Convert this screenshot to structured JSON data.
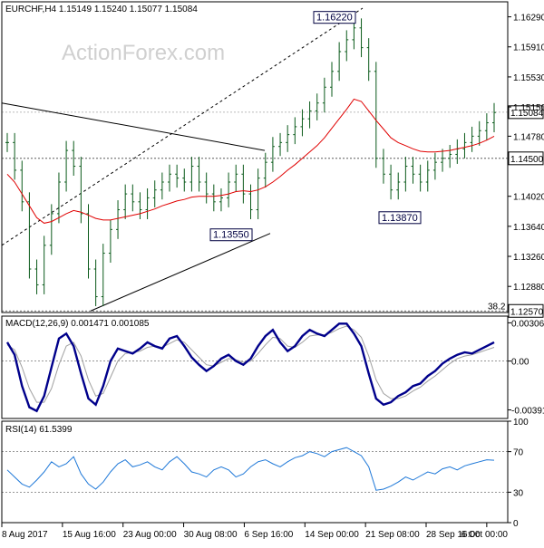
{
  "header": {
    "symbol_info": "EURCHF,H4  1.15149 1.15240 1.15077 1.15084",
    "watermark": "ActionForex.com"
  },
  "colors": {
    "price_bars": "#0a5a1a",
    "moving_average": "#e00000",
    "macd": "#00008b",
    "macd_signal": "#a0a0a0",
    "rsi": "#1e78d8",
    "label_border": "#000040"
  },
  "chart_data": [
    {
      "type": "ohlc-bar",
      "title": "EURCHF,H4  1.15149 1.15240 1.15077 1.15084",
      "ylim": [
        1.1255,
        1.1648
      ],
      "y_tick_labels": [
        "1.16290",
        "1.15910",
        "1.15530",
        "1.15150",
        "1.14780",
        "1.14020",
        "1.13640",
        "1.13260",
        "1.12880"
      ],
      "y_ticks": [
        1.1629,
        1.1591,
        1.1553,
        1.1515,
        1.1478,
        1.1402,
        1.1364,
        1.1326,
        1.1288
      ],
      "x_tick_labels": [
        "8 Aug 2017",
        "15 Aug 16:00",
        "23 Aug 00:00",
        "30 Aug 08:00",
        "6 Sep 16:00",
        "14 Sep 00:00",
        "21 Sep 08:00",
        "28 Sep 16:00",
        "6 Oct 00:00"
      ],
      "current_price": {
        "label": "1.15084",
        "value": 1.15084
      },
      "levels": [
        {
          "label": "1.14500",
          "value": 1.145
        },
        {
          "label": "1.12570",
          "value": 1.1257,
          "tag": "38.2"
        }
      ],
      "annotations": [
        {
          "label": "1.16220",
          "value": 1.1622
        },
        {
          "label": "1.13870",
          "value": 1.1387
        },
        {
          "label": "1.13550",
          "value": 1.1355
        }
      ],
      "close_series": [
        1.147,
        1.1435,
        1.1395,
        1.131,
        1.129,
        1.134,
        1.138,
        1.142,
        1.146,
        1.144,
        1.138,
        1.131,
        1.1275,
        1.133,
        1.136,
        1.1385,
        1.1405,
        1.1395,
        1.1385,
        1.14,
        1.141,
        1.142,
        1.143,
        1.1425,
        1.142,
        1.144,
        1.142,
        1.1405,
        1.1395,
        1.14,
        1.142,
        1.143,
        1.1405,
        1.1385,
        1.1425,
        1.1445,
        1.1465,
        1.147,
        1.148,
        1.149,
        1.15,
        1.151,
        1.152,
        1.154,
        1.156,
        1.1585,
        1.16,
        1.1615,
        1.159,
        1.156,
        1.145,
        1.143,
        1.141,
        1.142,
        1.144,
        1.143,
        1.142,
        1.1435,
        1.1445,
        1.145,
        1.1455,
        1.1462,
        1.147,
        1.1478,
        1.1485,
        1.1495,
        1.1508
      ],
      "ma_series": [
        1.143,
        1.142,
        1.1405,
        1.139,
        1.1375,
        1.1368,
        1.137,
        1.1375,
        1.138,
        1.1384,
        1.1382,
        1.1378,
        1.1374,
        1.1372,
        1.1372,
        1.1374,
        1.1376,
        1.1378,
        1.138,
        1.1383,
        1.1386,
        1.139,
        1.1393,
        1.1396,
        1.1398,
        1.1401,
        1.1402,
        1.1402,
        1.1402,
        1.1403,
        1.1405,
        1.1408,
        1.1409,
        1.1408,
        1.141,
        1.1414,
        1.142,
        1.1427,
        1.1435,
        1.1442,
        1.145,
        1.1458,
        1.1466,
        1.1476,
        1.1488,
        1.15,
        1.1512,
        1.1525,
        1.1522,
        1.151,
        1.1498,
        1.1487,
        1.1476,
        1.147,
        1.1466,
        1.1462,
        1.1459,
        1.1458,
        1.1458,
        1.1459,
        1.146,
        1.1462,
        1.1464,
        1.1466,
        1.1469,
        1.1473,
        1.1478
      ]
    },
    {
      "type": "line",
      "title": "MACD(12,26,9) 0.001471 0.001085",
      "ylim": [
        -0.0046,
        0.0036
      ],
      "y_tick_labels": [
        "0.003063",
        "0.00",
        "-0.003914"
      ],
      "y_ticks": [
        0.003063,
        0.0,
        -0.003914
      ],
      "series": [
        {
          "values": [
            0.0015,
            0.0005,
            -0.002,
            -0.0037,
            -0.004,
            -0.0028,
            -0.0005,
            0.0018,
            0.0022,
            0.0012,
            -0.001,
            -0.003,
            -0.0035,
            -0.002,
            0.0,
            0.001,
            0.0008,
            0.0006,
            0.001,
            0.0015,
            0.0012,
            0.001,
            0.0018,
            0.002,
            0.0012,
            0.0003,
            -0.0003,
            -0.0008,
            -0.0004,
            0.0002,
            0.0005,
            0.0,
            -0.0003,
            0.0002,
            0.0012,
            0.002,
            0.0025,
            0.0015,
            0.0008,
            0.0012,
            0.002,
            0.0025,
            0.0022,
            0.002,
            0.0025,
            0.003,
            0.003,
            0.0022,
            0.0012,
            -0.001,
            -0.003,
            -0.0035,
            -0.0033,
            -0.0028,
            -0.0025,
            -0.002,
            -0.0018,
            -0.0012,
            -0.0008,
            -0.0002,
            0.0002,
            0.0005,
            0.0007,
            0.0006,
            0.0009,
            0.0012,
            0.0015
          ]
        },
        {
          "values": [
            0.0013,
            0.0009,
            -0.0005,
            -0.0022,
            -0.0033,
            -0.0033,
            -0.0022,
            -0.0003,
            0.0012,
            0.0015,
            0.0004,
            -0.0015,
            -0.0028,
            -0.0026,
            -0.0013,
            0.0,
            0.0006,
            0.0007,
            0.0008,
            0.0011,
            0.0012,
            0.0011,
            0.0014,
            0.0017,
            0.0015,
            0.0009,
            0.0003,
            -0.0003,
            -0.0004,
            -0.0001,
            0.0002,
            0.0001,
            -0.0001,
            0.0,
            0.0006,
            0.0013,
            0.0019,
            0.0018,
            0.0012,
            0.0011,
            0.0015,
            0.002,
            0.0021,
            0.0021,
            0.0023,
            0.0026,
            0.0028,
            0.0025,
            0.0019,
            0.0004,
            -0.0015,
            -0.0026,
            -0.003,
            -0.003,
            -0.0028,
            -0.0024,
            -0.0021,
            -0.0016,
            -0.0012,
            -0.0007,
            -0.0002,
            0.0002,
            0.0004,
            0.0005,
            0.0007,
            0.0009,
            0.0011
          ]
        }
      ]
    },
    {
      "type": "line",
      "title": "RSI(14) 61.5399",
      "ylim": [
        0,
        100
      ],
      "y_tick_labels": [
        "100",
        "70",
        "30",
        "0"
      ],
      "y_ticks": [
        100,
        70,
        30,
        0
      ],
      "series": [
        {
          "values": [
            52,
            45,
            38,
            35,
            42,
            50,
            60,
            55,
            58,
            65,
            48,
            38,
            33,
            40,
            50,
            58,
            62,
            55,
            57,
            60,
            55,
            52,
            60,
            65,
            58,
            50,
            48,
            45,
            52,
            55,
            52,
            45,
            48,
            55,
            60,
            62,
            58,
            55,
            60,
            64,
            66,
            70,
            68,
            65,
            70,
            72,
            74,
            70,
            66,
            55,
            32,
            33,
            36,
            40,
            45,
            42,
            46,
            50,
            48,
            53,
            55,
            52,
            56,
            58,
            60,
            62,
            61.5
          ]
        }
      ]
    }
  ]
}
